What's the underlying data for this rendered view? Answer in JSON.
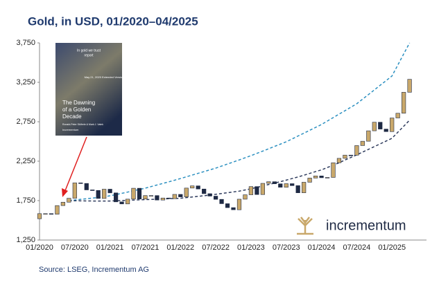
{
  "chart_data": {
    "type": "candlestick",
    "title": "Gold, in USD, 01/2020–04/2025",
    "source": "Source: LSEG, Incrementum AG",
    "logo": "incrementum",
    "cover": {
      "top": "In gold we trust",
      "top2": "report",
      "date": "May 21, 2025 Extended Version",
      "headline": [
        "The Dawning",
        "of a Golden",
        "Decade"
      ],
      "authors": "Ronald-Peter Stöferle & Mark J. Valek",
      "brand": "Incrementum"
    },
    "categories": [
      "01/2020",
      null,
      null,
      null,
      null,
      null,
      "07/2020",
      null,
      null,
      null,
      null,
      null,
      "01/2021",
      null,
      null,
      null,
      null,
      null,
      "07/2021",
      null,
      null,
      null,
      null,
      null,
      "01/2022",
      null,
      null,
      null,
      null,
      null,
      "07/2022",
      null,
      null,
      null,
      null,
      null,
      "01/2023",
      null,
      null,
      null,
      null,
      null,
      "07/2023",
      null,
      null,
      null,
      null,
      null,
      "01/2024",
      null,
      null,
      null,
      null,
      null,
      "07/2024",
      null,
      null,
      null,
      null,
      null,
      "01/2025",
      null,
      null,
      null
    ],
    "open": [
      1520,
      1585,
      1585,
      1577,
      1687,
      1730,
      1780,
      1975,
      1968,
      1886,
      1879,
      1777,
      1895,
      1848,
      1734,
      1708,
      1769,
      1907,
      1770,
      1814,
      1814,
      1757,
      1783,
      1775,
      1829,
      1797,
      1909,
      1937,
      1897,
      1838,
      1807,
      1766,
      1711,
      1661,
      1634,
      1768,
      1824,
      1928,
      1827,
      1969,
      1990,
      1963,
      1919,
      1965,
      1940,
      1849,
      1983,
      2036,
      2063,
      2040,
      2044,
      2230,
      2286,
      2327,
      2326,
      2448,
      2503,
      2635,
      2744,
      2657,
      2625,
      2798,
      2858,
      3124
    ],
    "close": [
      1585,
      1585,
      1577,
      1687,
      1730,
      1780,
      1975,
      1968,
      1886,
      1879,
      1777,
      1895,
      1848,
      1734,
      1708,
      1769,
      1907,
      1770,
      1814,
      1814,
      1757,
      1783,
      1775,
      1829,
      1797,
      1909,
      1937,
      1897,
      1838,
      1807,
      1766,
      1711,
      1661,
      1634,
      1768,
      1824,
      1928,
      1827,
      1969,
      1990,
      1963,
      1919,
      1965,
      1940,
      1849,
      1983,
      2036,
      2063,
      2040,
      2044,
      2230,
      2286,
      2327,
      2326,
      2448,
      2503,
      2635,
      2744,
      2657,
      2625,
      2798,
      2858,
      3124,
      3288
    ],
    "up_color": "#c9a86a",
    "down_color": "#1f2a44",
    "trends": [
      {
        "color": "#2a8fc0",
        "values": [
          null,
          null,
          null,
          null,
          null,
          1750,
          1758,
          1766,
          1774,
          1782,
          1790,
          1800,
          1811,
          1826,
          1842,
          1858,
          1875,
          1891,
          1908,
          1928,
          1948,
          1968,
          1988,
          2009,
          2030,
          2052,
          2074,
          2096,
          2118,
          2140,
          2162,
          2188,
          2214,
          2240,
          2266,
          2293,
          2320,
          2349,
          2378,
          2407,
          2437,
          2466,
          2496,
          2532,
          2569,
          2605,
          2642,
          2678,
          2715,
          2759,
          2803,
          2847,
          2890,
          2934,
          2978,
          3037,
          3095,
          3154,
          3213,
          3271,
          3330,
          3470,
          3610,
          3750
        ]
      },
      {
        "color": "#2d3a5c",
        "values": [
          null,
          null,
          null,
          null,
          null,
          1750,
          1748,
          1747,
          1746,
          1745,
          1745,
          1745,
          1745,
          1748,
          1751,
          1754,
          1757,
          1760,
          1762,
          1765,
          1768,
          1771,
          1774,
          1777,
          1780,
          1788,
          1796,
          1804,
          1812,
          1820,
          1830,
          1840,
          1850,
          1860,
          1870,
          1885,
          1900,
          1918,
          1936,
          1954,
          1972,
          1990,
          2010,
          2030,
          2050,
          2072,
          2095,
          2118,
          2140,
          2170,
          2200,
          2230,
          2265,
          2297,
          2330,
          2365,
          2400,
          2435,
          2470,
          2505,
          2540,
          2617,
          2693,
          2770
        ]
      }
    ],
    "ylim": [
      1250,
      3750
    ],
    "yticks": [
      {
        "value": 1250,
        "label": "1,250"
      },
      {
        "value": 1750,
        "label": "1,750"
      },
      {
        "value": 2250,
        "label": "2,250"
      },
      {
        "value": 2750,
        "label": "2,750"
      },
      {
        "value": 3250,
        "label": "3,250"
      },
      {
        "value": 3750,
        "label": "3,750"
      }
    ]
  }
}
